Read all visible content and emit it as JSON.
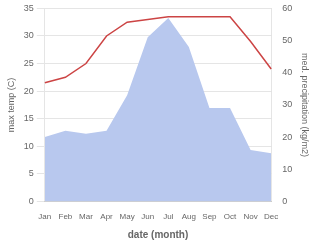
{
  "chart_data": {
    "type": "line",
    "xlabel": "date (month)",
    "ylabel": "max temp (C)",
    "y2label": "med. precipitation (kg/m2)",
    "categories": [
      "Jan",
      "Feb",
      "Mar",
      "Apr",
      "May",
      "Jun",
      "Jul",
      "Aug",
      "Sep",
      "Oct",
      "Nov",
      "Dec"
    ],
    "series": [
      {
        "type": "area",
        "color": "#b8c8ee",
        "axis": "y2",
        "values": [
          20.0,
          22.0,
          21.0,
          22.0,
          33.0,
          51.0,
          57.0,
          48.0,
          29.0,
          29.0,
          16.0,
          15.0
        ]
      },
      {
        "type": "line",
        "color": "#cc4444",
        "values": [
          21.5,
          22.5,
          25.0,
          30.0,
          32.5,
          33.0,
          33.5,
          33.5,
          33.5,
          33.5,
          29.0,
          24.0
        ]
      }
    ],
    "ylim": [
      0,
      35
    ],
    "yticks": [
      0,
      5,
      10,
      15,
      20,
      25,
      30,
      35
    ],
    "y2lim": [
      0,
      60
    ],
    "y2ticks": [
      0,
      10,
      20,
      30,
      40,
      50,
      60
    ],
    "grid": true
  }
}
